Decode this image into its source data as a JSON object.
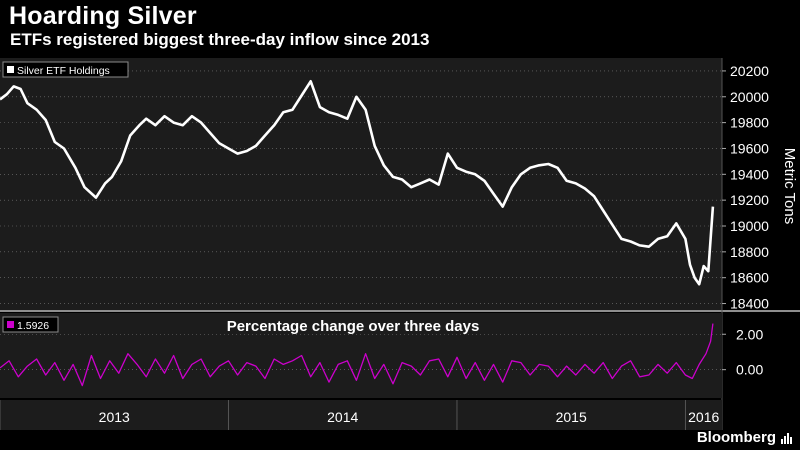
{
  "header": {
    "title": "Hoarding Silver",
    "subtitle": "ETFs registered biggest three-day inflow since 2013"
  },
  "footer": {
    "brand": "Bloomberg",
    "brand_icon": "bar-chart-icon"
  },
  "colors": {
    "background": "#000000",
    "panel": "#1c1c1c",
    "holdings_line": "#ffffff",
    "change_line": "#cc00cc",
    "grid": "#7a7a7a",
    "divider": "#bdbdbd"
  },
  "chart_data": [
    {
      "type": "line",
      "legend": "Silver ETF Holdings",
      "legend_position": "top-left",
      "ylabel": "Metric Tons",
      "ylim": [
        18350,
        20300
      ],
      "yticks": [
        18400,
        18600,
        18800,
        19000,
        19200,
        19400,
        19600,
        19800,
        20000,
        20200
      ],
      "grid": true,
      "series": [
        {
          "name": "Silver ETF Holdings",
          "x": [
            2013.0,
            2013.03,
            2013.06,
            2013.09,
            2013.12,
            2013.16,
            2013.2,
            2013.24,
            2013.28,
            2013.33,
            2013.37,
            2013.42,
            2013.46,
            2013.49,
            2013.53,
            2013.57,
            2013.61,
            2013.64,
            2013.68,
            2013.72,
            2013.76,
            2013.8,
            2013.84,
            2013.88,
            2013.92,
            2013.96,
            2014.0,
            2014.04,
            2014.08,
            2014.12,
            2014.16,
            2014.2,
            2014.24,
            2014.28,
            2014.32,
            2014.36,
            2014.4,
            2014.44,
            2014.48,
            2014.52,
            2014.56,
            2014.6,
            2014.64,
            2014.68,
            2014.72,
            2014.76,
            2014.8,
            2014.84,
            2014.88,
            2014.92,
            2014.96,
            2015.0,
            2015.04,
            2015.08,
            2015.12,
            2015.16,
            2015.2,
            2015.24,
            2015.28,
            2015.32,
            2015.36,
            2015.4,
            2015.44,
            2015.48,
            2015.52,
            2015.56,
            2015.6,
            2015.64,
            2015.68,
            2015.72,
            2015.76,
            2015.8,
            2015.84,
            2015.88,
            2015.92,
            2015.96,
            2016.0,
            2016.02,
            2016.04,
            2016.06,
            2016.08,
            2016.1,
            2016.12
          ],
          "y": [
            19980,
            20020,
            20080,
            20060,
            19950,
            19900,
            19820,
            19650,
            19600,
            19450,
            19300,
            19220,
            19330,
            19380,
            19500,
            19700,
            19780,
            19830,
            19780,
            19850,
            19800,
            19780,
            19850,
            19800,
            19720,
            19640,
            19600,
            19560,
            19580,
            19620,
            19700,
            19780,
            19880,
            19900,
            20010,
            20120,
            19920,
            19880,
            19860,
            19830,
            20000,
            19900,
            19620,
            19470,
            19380,
            19360,
            19300,
            19330,
            19360,
            19320,
            19560,
            19450,
            19420,
            19400,
            19350,
            19250,
            19150,
            19300,
            19400,
            19450,
            19470,
            19480,
            19450,
            19350,
            19330,
            19290,
            19230,
            19120,
            19010,
            18900,
            18880,
            18850,
            18840,
            18900,
            18920,
            19020,
            18900,
            18700,
            18600,
            18550,
            18690,
            18650,
            19150
          ]
        }
      ]
    },
    {
      "type": "line",
      "title": "Percentage change over three days",
      "legend": "1.5926",
      "legend_position": "top-left",
      "ylim": [
        -1.6,
        3.2
      ],
      "yticks": [
        0.0,
        2.0
      ],
      "grid": true,
      "xlim": [
        2013.0,
        2016.16
      ],
      "xticks": [
        "2013",
        "2014",
        "2015",
        "2016"
      ],
      "series": [
        {
          "name": "1.5926",
          "x": [
            2013.0,
            2013.04,
            2013.08,
            2013.12,
            2013.16,
            2013.2,
            2013.24,
            2013.28,
            2013.32,
            2013.36,
            2013.4,
            2013.44,
            2013.48,
            2013.52,
            2013.56,
            2013.6,
            2013.64,
            2013.68,
            2013.72,
            2013.76,
            2013.8,
            2013.84,
            2013.88,
            2013.92,
            2013.96,
            2014.0,
            2014.04,
            2014.08,
            2014.12,
            2014.16,
            2014.2,
            2014.24,
            2014.28,
            2014.32,
            2014.36,
            2014.4,
            2014.44,
            2014.48,
            2014.52,
            2014.56,
            2014.6,
            2014.64,
            2014.68,
            2014.72,
            2014.76,
            2014.8,
            2014.84,
            2014.88,
            2014.92,
            2014.96,
            2015.0,
            2015.04,
            2015.08,
            2015.12,
            2015.16,
            2015.2,
            2015.24,
            2015.28,
            2015.32,
            2015.36,
            2015.4,
            2015.44,
            2015.48,
            2015.52,
            2015.56,
            2015.6,
            2015.64,
            2015.68,
            2015.72,
            2015.76,
            2015.8,
            2015.84,
            2015.88,
            2015.92,
            2015.96,
            2016.0,
            2016.03,
            2016.06,
            2016.09,
            2016.11,
            2016.12
          ],
          "y": [
            0.1,
            0.5,
            -0.4,
            0.2,
            0.6,
            -0.3,
            0.4,
            -0.6,
            0.3,
            -0.9,
            0.8,
            -0.5,
            0.5,
            -0.2,
            0.9,
            0.3,
            -0.4,
            0.6,
            -0.2,
            0.8,
            -0.5,
            0.3,
            0.6,
            -0.4,
            0.2,
            0.5,
            -0.3,
            0.4,
            0.2,
            -0.5,
            0.6,
            0.3,
            0.5,
            0.8,
            -0.4,
            0.4,
            -0.7,
            0.3,
            0.5,
            -0.6,
            0.9,
            -0.5,
            0.3,
            -0.8,
            0.4,
            0.2,
            -0.3,
            0.5,
            0.6,
            -0.4,
            0.7,
            -0.5,
            0.4,
            -0.6,
            0.3,
            -0.7,
            0.5,
            0.4,
            -0.3,
            0.3,
            0.2,
            -0.4,
            0.2,
            -0.3,
            0.3,
            -0.2,
            0.4,
            -0.5,
            0.2,
            0.5,
            -0.4,
            -0.3,
            0.3,
            -0.2,
            0.4,
            -0.3,
            -0.5,
            0.3,
            0.9,
            1.6,
            2.6
          ]
        }
      ]
    }
  ]
}
